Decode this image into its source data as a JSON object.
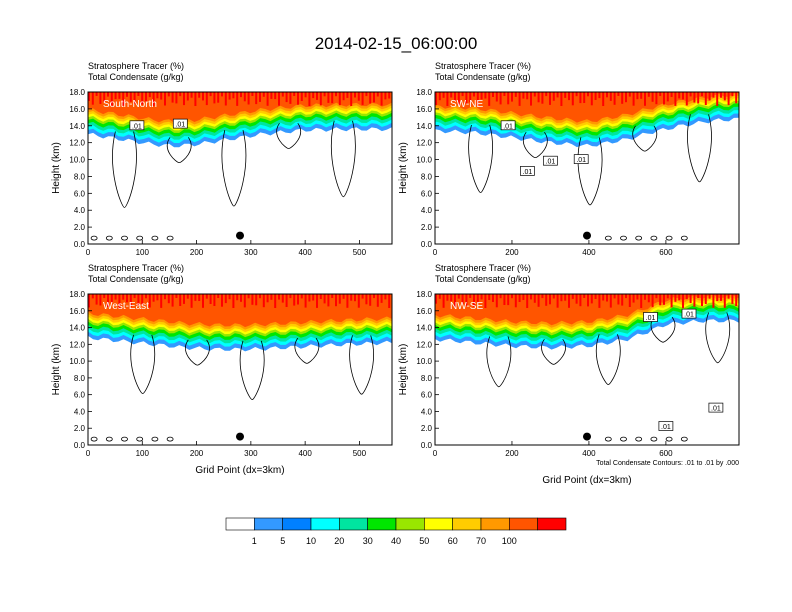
{
  "title": "2014-02-15_06:00:00",
  "colors": {
    "levels": [
      "#ffffff",
      "#3399ff",
      "#0080ff",
      "#00ffff",
      "#00e5a0",
      "#00e600",
      "#99e600",
      "#ffff00",
      "#ffcc00",
      "#ff9900",
      "#ff5500",
      "#ff0000"
    ],
    "contour": "#000000",
    "marker": "#000000"
  },
  "chart_data": [
    {
      "type": "heatmap",
      "panel_label": "South-North",
      "title_lines": [
        "Stratosphere Tracer   (%)",
        "Total Condensate   (g/kg)"
      ],
      "xlabel": "",
      "ylabel": "Height (km)",
      "xlim": [
        0,
        560
      ],
      "ylim": [
        0,
        18
      ],
      "xticks": [
        "0",
        "100",
        "200",
        "300",
        "400",
        "500"
      ],
      "xtick_values": [
        0,
        100,
        200,
        300,
        400,
        500
      ],
      "yticks": [
        "0.0",
        "2.0",
        "4.0",
        "6.0",
        "8.0",
        "10.0",
        "12.0",
        "14.0",
        "16.0",
        "18.0"
      ],
      "ytick_values": [
        0,
        2,
        4,
        6,
        8,
        10,
        12,
        14,
        16,
        18
      ],
      "tracer_base_km": [
        [
          0,
          13.0
        ],
        [
          40,
          12.6
        ],
        [
          80,
          12.2
        ],
        [
          120,
          11.8
        ],
        [
          160,
          11.6
        ],
        [
          200,
          11.8
        ],
        [
          240,
          12.2
        ],
        [
          280,
          12.6
        ],
        [
          320,
          13.0
        ],
        [
          400,
          13.5
        ],
        [
          480,
          13.6
        ],
        [
          560,
          13.6
        ]
      ],
      "contour_labels": [
        {
          "text": ".01",
          "x": 90,
          "y": 14.0
        },
        {
          "text": ".01",
          "x": 170,
          "y": 14.2
        }
      ],
      "marker": {
        "x": 280,
        "y": 1.0
      }
    },
    {
      "type": "heatmap",
      "panel_label": "SW-NE",
      "title_lines": [
        "Stratosphere Tracer   (%)",
        "Total Condensate   (g/kg)"
      ],
      "xlabel": "",
      "ylabel": "Height (km)",
      "xlim": [
        0,
        790
      ],
      "ylim": [
        0,
        18
      ],
      "xticks": [
        "0",
        "200",
        "400",
        "600"
      ],
      "xtick_values": [
        0,
        200,
        400,
        600
      ],
      "yticks": [
        "0.0",
        "2.0",
        "4.0",
        "6.0",
        "8.0",
        "10.0",
        "12.0",
        "14.0",
        "16.0",
        "18.0"
      ],
      "ytick_values": [
        0,
        2,
        4,
        6,
        8,
        10,
        12,
        14,
        16,
        18
      ],
      "tracer_base_km": [
        [
          0,
          13.4
        ],
        [
          100,
          13.2
        ],
        [
          200,
          12.6
        ],
        [
          300,
          12.0
        ],
        [
          400,
          11.6
        ],
        [
          500,
          12.4
        ],
        [
          560,
          13.2
        ],
        [
          640,
          14.0
        ],
        [
          720,
          14.6
        ],
        [
          790,
          14.8
        ]
      ],
      "contour_labels": [
        {
          "text": ".01",
          "x": 190,
          "y": 14.0
        },
        {
          "text": ".01",
          "x": 240,
          "y": 8.6
        },
        {
          "text": ".01",
          "x": 300,
          "y": 9.8
        },
        {
          "text": ".01",
          "x": 380,
          "y": 10.0
        }
      ],
      "marker": {
        "x": 395,
        "y": 1.0
      }
    },
    {
      "type": "heatmap",
      "panel_label": "West-East",
      "title_lines": [
        "Stratosphere Tracer   (%)",
        "Total Condensate   (g/kg)"
      ],
      "xlabel": "Grid Point (dx=3km)",
      "ylabel": "Height (km)",
      "xlim": [
        0,
        560
      ],
      "ylim": [
        0,
        18
      ],
      "xticks": [
        "0",
        "100",
        "200",
        "300",
        "400",
        "500"
      ],
      "xtick_values": [
        0,
        100,
        200,
        300,
        400,
        500
      ],
      "yticks": [
        "0.0",
        "2.0",
        "4.0",
        "6.0",
        "8.0",
        "10.0",
        "12.0",
        "14.0",
        "16.0",
        "18.0"
      ],
      "ytick_values": [
        0,
        2,
        4,
        6,
        8,
        10,
        12,
        14,
        16,
        18
      ],
      "tracer_base_km": [
        [
          0,
          12.8
        ],
        [
          60,
          12.4
        ],
        [
          120,
          12.0
        ],
        [
          180,
          11.6
        ],
        [
          240,
          11.4
        ],
        [
          300,
          11.4
        ],
        [
          360,
          11.6
        ],
        [
          420,
          11.8
        ],
        [
          480,
          12.0
        ],
        [
          560,
          12.2
        ]
      ],
      "contour_labels": [],
      "marker": {
        "x": 280,
        "y": 1.0
      }
    },
    {
      "type": "heatmap",
      "panel_label": "NW-SE",
      "title_lines": [
        "Stratosphere Tracer   (%)",
        "Total Condensate   (g/kg)"
      ],
      "xlabel": "Grid Point (dx=3km)",
      "ylabel": "Height (km)",
      "xlim": [
        0,
        790
      ],
      "ylim": [
        0,
        18
      ],
      "xticks": [
        "0",
        "200",
        "400",
        "600"
      ],
      "xtick_values": [
        0,
        200,
        400,
        600
      ],
      "yticks": [
        "0.0",
        "2.0",
        "4.0",
        "6.0",
        "8.0",
        "10.0",
        "12.0",
        "14.0",
        "16.0",
        "18.0"
      ],
      "ytick_values": [
        0,
        2,
        4,
        6,
        8,
        10,
        12,
        14,
        16,
        18
      ],
      "tracer_base_km": [
        [
          0,
          12.6
        ],
        [
          100,
          12.2
        ],
        [
          200,
          11.8
        ],
        [
          300,
          11.6
        ],
        [
          400,
          11.8
        ],
        [
          500,
          12.6
        ],
        [
          560,
          13.6
        ],
        [
          600,
          14.4
        ],
        [
          700,
          14.8
        ],
        [
          790,
          14.8
        ]
      ],
      "contour_labels": [
        {
          "text": ".01",
          "x": 560,
          "y": 15.2
        },
        {
          "text": ".01",
          "x": 660,
          "y": 15.6
        },
        {
          "text": ".01",
          "x": 730,
          "y": 4.4
        },
        {
          "text": ".01",
          "x": 600,
          "y": 2.2
        }
      ],
      "marker": {
        "x": 395,
        "y": 1.0
      },
      "footnote": "Total Condensate Contours: .01 to .01 by .000"
    }
  ],
  "colorbar": {
    "labels": [
      "1",
      "5",
      "10",
      "20",
      "30",
      "40",
      "50",
      "60",
      "70",
      "100"
    ],
    "label_values": [
      1,
      5,
      10,
      20,
      30,
      40,
      50,
      60,
      70,
      100
    ]
  }
}
